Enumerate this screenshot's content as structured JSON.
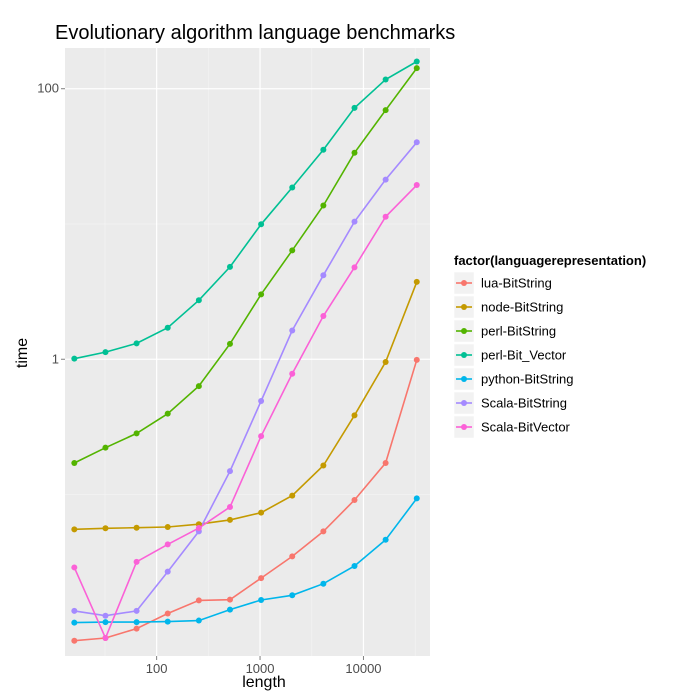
{
  "chart_data": {
    "type": "line",
    "title": "Evolutionary algorithm language benchmarks",
    "xlabel": "length",
    "ylabel": "time",
    "x_scale": "log10",
    "y_scale": "log10",
    "xlim": [
      13,
      44000
    ],
    "ylim": [
      0.0064,
      200
    ],
    "x_ticks": [
      100,
      1000,
      10000
    ],
    "x_tick_labels": [
      "100",
      "1000",
      "10000"
    ],
    "y_ticks": [
      1,
      100
    ],
    "y_tick_labels": [
      "1",
      "100"
    ],
    "grid": true,
    "legend_position": "right",
    "legend_title": "factor(languagerepresentation)",
    "x": [
      16,
      32,
      64,
      128,
      256,
      512,
      1024,
      2048,
      4096,
      8192,
      16384,
      32768
    ],
    "series": [
      {
        "name": "lua-BitString",
        "color": "#F8766D",
        "values": [
          0.0083,
          0.0087,
          0.0102,
          0.0132,
          0.0165,
          0.0167,
          0.0241,
          0.0349,
          0.0534,
          0.0911,
          0.171,
          0.99
        ]
      },
      {
        "name": "node-BitString",
        "color": "#C49A00",
        "values": [
          0.0553,
          0.0563,
          0.0568,
          0.0575,
          0.0603,
          0.0649,
          0.0734,
          0.0982,
          0.164,
          0.385,
          0.955,
          3.73
        ]
      },
      {
        "name": "perl-BitString",
        "color": "#53B400",
        "values": [
          0.171,
          0.222,
          0.283,
          0.396,
          0.633,
          1.3,
          3.02,
          6.38,
          13.7,
          33.6,
          69.4,
          142
        ]
      },
      {
        "name": "perl-Bit_Vector",
        "color": "#00C094",
        "values": [
          1.01,
          1.13,
          1.31,
          1.71,
          2.73,
          4.82,
          9.95,
          18.6,
          35.4,
          72.2,
          117,
          159
        ]
      },
      {
        "name": "python-BitString",
        "color": "#00B6EB",
        "values": [
          0.0113,
          0.0114,
          0.0114,
          0.0115,
          0.0117,
          0.0141,
          0.0166,
          0.018,
          0.0219,
          0.0296,
          0.0463,
          0.0936
        ]
      },
      {
        "name": "Scala-BitString",
        "color": "#A58AFF",
        "values": [
          0.0138,
          0.0127,
          0.0138,
          0.0269,
          0.0534,
          0.149,
          0.491,
          1.63,
          4.18,
          10.4,
          21.3,
          40.2
        ]
      },
      {
        "name": "Scala-BitVector",
        "color": "#FB61D7",
        "values": [
          0.0289,
          0.0087,
          0.0318,
          0.0428,
          0.0565,
          0.0808,
          0.27,
          0.782,
          2.09,
          4.78,
          11.3,
          19.4
        ]
      }
    ]
  }
}
